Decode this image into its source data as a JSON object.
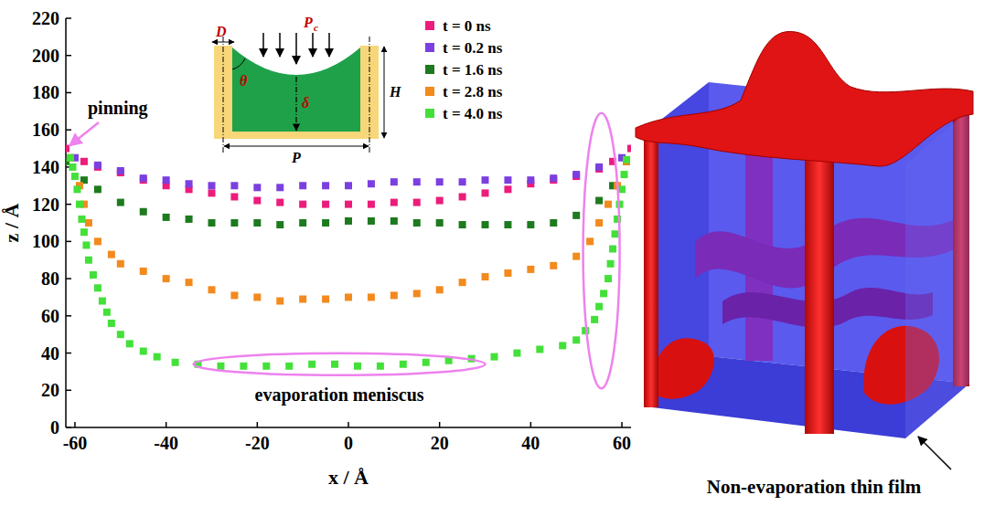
{
  "chart_data": {
    "type": "scatter",
    "xlabel": "x / Å",
    "ylabel": "z / Å",
    "xlim": [
      -62,
      62
    ],
    "ylim": [
      0,
      220
    ],
    "xticks": [
      -60,
      -40,
      -20,
      0,
      20,
      40,
      60
    ],
    "yticks": [
      0,
      20,
      40,
      60,
      80,
      100,
      120,
      140,
      160,
      180,
      200,
      220
    ],
    "grid": false,
    "legend": "upper right",
    "marker": "square",
    "annotations": [
      "pinning",
      "evaporation meniscus"
    ],
    "series": [
      {
        "name": "t = 0 ns",
        "color": "#ec1c7b",
        "x": [
          -62,
          -58,
          -55,
          -50,
          -45,
          -40,
          -35,
          -30,
          -25,
          -20,
          -15,
          -10,
          -5,
          0,
          5,
          10,
          15,
          20,
          25,
          30,
          35,
          40,
          45,
          50,
          55,
          58,
          62
        ],
        "values": [
          150,
          143,
          140,
          137,
          133,
          130,
          128,
          126,
          124,
          122,
          121,
          120,
          120,
          120,
          120,
          121,
          121,
          122,
          124,
          126,
          128,
          131,
          133,
          135,
          139,
          143,
          150
        ]
      },
      {
        "name": "t = 0.2 ns",
        "color": "#7b3fe0",
        "x": [
          -60,
          -55,
          -50,
          -45,
          -40,
          -35,
          -30,
          -25,
          -20,
          -15,
          -10,
          -5,
          0,
          5,
          10,
          15,
          20,
          25,
          30,
          35,
          40,
          45,
          50,
          55,
          60
        ],
        "values": [
          145,
          141,
          138,
          134,
          133,
          131,
          130,
          130,
          129,
          129,
          130,
          130,
          130,
          131,
          132,
          132,
          132,
          132,
          133,
          133,
          133,
          134,
          136,
          140,
          145
        ]
      },
      {
        "name": "t = 1.6 ns",
        "color": "#1e7a1e",
        "x": [
          -62,
          -58,
          -55,
          -50,
          -45,
          -40,
          -35,
          -30,
          -25,
          -20,
          -15,
          -10,
          -5,
          0,
          5,
          10,
          15,
          20,
          25,
          30,
          35,
          40,
          45,
          50,
          55,
          58,
          61
        ],
        "values": [
          143,
          133,
          128,
          121,
          116,
          113,
          112,
          110,
          110,
          110,
          109,
          110,
          110,
          111,
          111,
          111,
          110,
          110,
          109,
          109,
          109,
          109,
          110,
          114,
          122,
          130,
          143
        ]
      },
      {
        "name": "t = 2.8 ns",
        "color": "#f28a1e",
        "x": [
          -61,
          -59,
          -58,
          -57,
          -55,
          -52,
          -50,
          -45,
          -40,
          -35,
          -30,
          -25,
          -20,
          -15,
          -10,
          -5,
          0,
          5,
          10,
          15,
          20,
          25,
          30,
          35,
          40,
          45,
          50,
          53,
          55,
          57,
          59,
          61
        ],
        "values": [
          145,
          130,
          120,
          110,
          100,
          93,
          88,
          84,
          80,
          78,
          74,
          71,
          70,
          68,
          69,
          69,
          70,
          70,
          71,
          72,
          74,
          78,
          81,
          83,
          85,
          87,
          92,
          100,
          110,
          120,
          130,
          143
        ]
      },
      {
        "name": "t = 4.0 ns",
        "color": "#44e03a",
        "x": [
          -61,
          -60.5,
          -60,
          -59.5,
          -59,
          -58.5,
          -58,
          -57.5,
          -57,
          -56,
          -55,
          -54,
          -53,
          -52,
          -50,
          -48,
          -45,
          -42,
          -38,
          -33,
          -28,
          -23,
          -18,
          -13,
          -8,
          -3,
          2,
          7,
          12,
          17,
          22,
          27,
          32,
          37,
          42,
          47,
          50,
          52,
          54,
          55,
          56,
          57,
          57.5,
          58,
          58.5,
          59,
          59.5,
          60,
          60.5,
          61
        ],
        "values": [
          145,
          140,
          135,
          128,
          120,
          112,
          105,
          98,
          90,
          82,
          75,
          68,
          62,
          56,
          50,
          45,
          41,
          38,
          35,
          34,
          33,
          33,
          33,
          33,
          34,
          34,
          33,
          33,
          34,
          35,
          36,
          37,
          38,
          40,
          42,
          44,
          47,
          52,
          58,
          65,
          72,
          80,
          88,
          96,
          104,
          112,
          120,
          128,
          136,
          144
        ]
      }
    ]
  },
  "inset": {
    "width_label": "D",
    "pressure_label": "P",
    "pressure_sub": "c",
    "angle_label": "θ",
    "depth_label": "δ",
    "height_label": "H",
    "pitch_label": "P"
  },
  "render": {
    "label": "Non-evaporation thin film"
  }
}
